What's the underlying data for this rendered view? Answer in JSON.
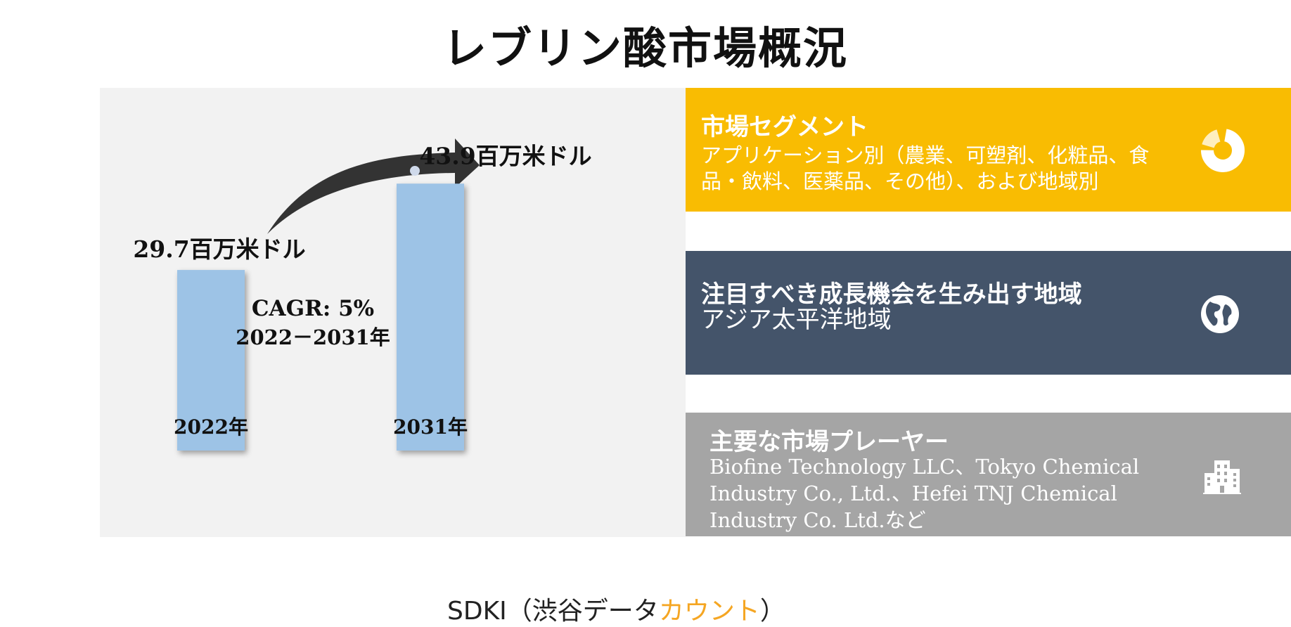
{
  "title": "レブリン酸市場概況",
  "chart_data": {
    "type": "bar",
    "categories": [
      "2022年",
      "2031年"
    ],
    "values": [
      29.7,
      43.9
    ],
    "value_labels": [
      "29.7百万米ドル",
      "43.9百万米ドル"
    ],
    "unit": "百万米ドル",
    "annotation": {
      "line1": "CAGR: 5%",
      "line2": "2022－2031年"
    },
    "bar_color": "#9dc3e6",
    "ylim": [
      0,
      50
    ]
  },
  "source": {
    "prefix": "SDKI（渋谷データ",
    "accent": "カウント",
    "suffix": "）",
    "accent_color": "#f5a623"
  },
  "cards": {
    "segment": {
      "heading": "市場セグメント",
      "body": "アプリケーション別（農業、可塑剤、化粧品、食品・飲料、医薬品、その他）、および地域別",
      "icon": "donut-chart-icon",
      "color": "#f9bc02"
    },
    "region": {
      "heading": "注目すべき成長機会を生み出す地域",
      "body": "アジア太平洋地域",
      "icon": "globe-icon",
      "color": "#44546a"
    },
    "players": {
      "heading": "主要な市場プレーヤー",
      "body": "Biofine Technology LLC、Tokyo Chemical Industry Co., Ltd.、Hefei TNJ Chemical Industry Co. Ltd.など",
      "icon": "buildings-icon",
      "color": "#a5a5a5"
    }
  }
}
